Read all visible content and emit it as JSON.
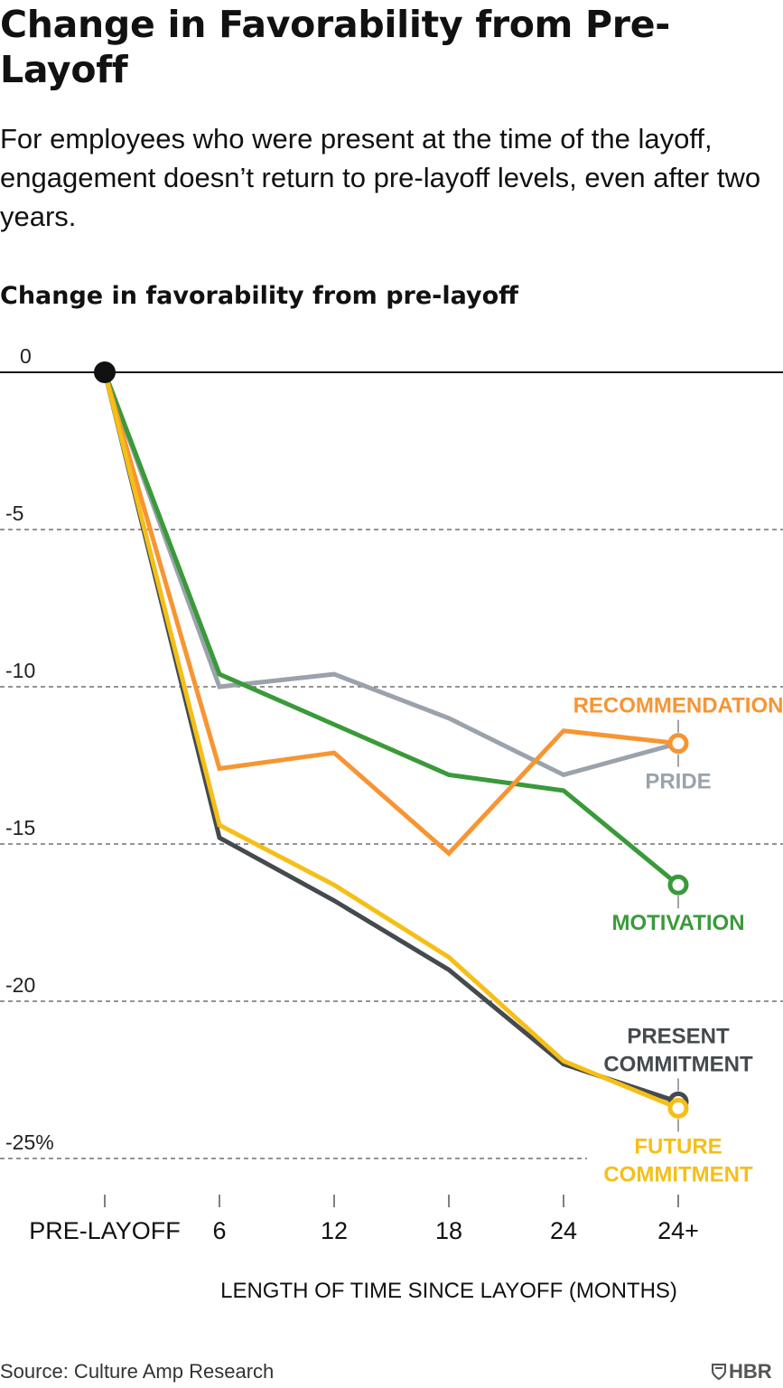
{
  "header": {
    "title": "Change in Favorability from Pre-Layoff",
    "subtitle": "For employees who were present at the time of the layoff, engagement doesn’t return to pre-layoff levels, even after two years."
  },
  "footer": {
    "source": "Source: Culture Amp Research",
    "logo_text": "HBR"
  },
  "chart_data": {
    "type": "line",
    "ylabel": "Change in favorability from pre-layoff",
    "xlabel": "LENGTH OF TIME SINCE LAYOFF (MONTHS)",
    "categories": [
      "PRE-LAYOFF",
      "6",
      "12",
      "18",
      "24",
      "24+"
    ],
    "ylim": [
      -25,
      0
    ],
    "yticks": [
      0,
      -5,
      -10,
      -15,
      -20,
      -25
    ],
    "ytick_labels": [
      "0",
      "-5",
      "-10",
      "-15",
      "-20",
      "-25%"
    ],
    "grid": "dashed horizontal",
    "series": [
      {
        "name": "PRIDE",
        "color": "#9aa3ab",
        "values": [
          0,
          -10.0,
          -9.6,
          -11.0,
          -12.8,
          -11.8
        ],
        "label_lines": [
          "PRIDE"
        ],
        "label_side": "below",
        "end_marker": false
      },
      {
        "name": "MOTIVATION",
        "color": "#3a9a3a",
        "values": [
          0,
          -9.6,
          -11.2,
          -12.8,
          -13.3,
          -16.3
        ],
        "label_lines": [
          "MOTIVATION"
        ],
        "label_side": "below",
        "end_marker": true
      },
      {
        "name": "RECOMMENDATION",
        "color": "#f79533",
        "values": [
          0,
          -12.6,
          -12.1,
          -15.3,
          -11.4,
          -11.8
        ],
        "label_lines": [
          "RECOMMENDATION"
        ],
        "label_side": "above",
        "end_marker": true
      },
      {
        "name": "PRESENT COMMITMENT",
        "color": "#444a4d",
        "values": [
          0,
          -14.8,
          -16.8,
          -19.0,
          -22.0,
          -23.2
        ],
        "label_lines": [
          "PRESENT",
          "COMMITMENT"
        ],
        "label_side": "above",
        "end_marker": true
      },
      {
        "name": "FUTURE COMMITMENT",
        "color": "#f5bf18",
        "values": [
          0,
          -14.4,
          -16.3,
          -18.6,
          -21.9,
          -23.4
        ],
        "label_lines": [
          "FUTURE",
          "COMMITMENT"
        ],
        "label_side": "below",
        "end_marker": true
      }
    ],
    "start_marker_color": "#111111"
  }
}
